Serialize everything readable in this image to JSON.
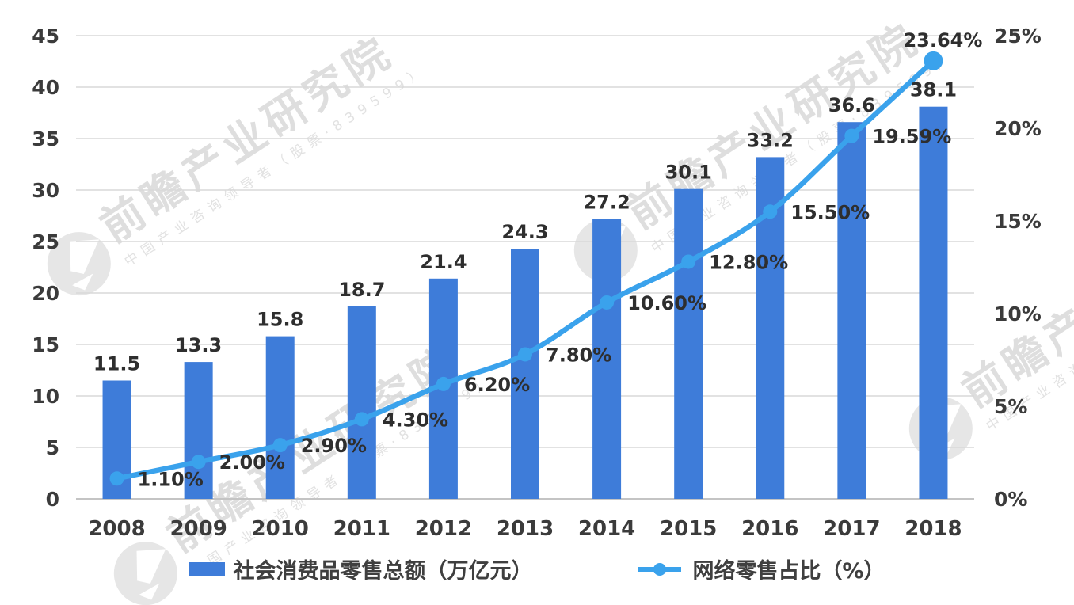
{
  "chart_data": {
    "type": "bar+line combo",
    "categories": [
      "2008",
      "2009",
      "2010",
      "2011",
      "2012",
      "2013",
      "2014",
      "2015",
      "2016",
      "2017",
      "2018"
    ],
    "series": [
      {
        "name": "社会消费品零售总额（万亿元）",
        "type": "bar",
        "axis": "left",
        "values": [
          11.5,
          13.3,
          15.8,
          18.7,
          21.4,
          24.3,
          27.2,
          30.1,
          33.2,
          36.6,
          38.1
        ],
        "labels": [
          "11.5",
          "13.3",
          "15.8",
          "18.7",
          "21.4",
          "24.3",
          "27.2",
          "30.1",
          "33.2",
          "36.6",
          "38.1"
        ]
      },
      {
        "name": "网络零售占比（%）",
        "type": "line",
        "axis": "right",
        "values": [
          1.1,
          2.0,
          2.9,
          4.3,
          6.2,
          7.8,
          10.6,
          12.8,
          15.5,
          19.59,
          23.64
        ],
        "labels": [
          "1.10%",
          "2.00%",
          "2.90%",
          "4.30%",
          "6.20%",
          "7.80%",
          "10.60%",
          "12.80%",
          "15.50%",
          "19.59%",
          "23.64%"
        ]
      }
    ],
    "left_axis": {
      "min": 0,
      "max": 45,
      "step": 5,
      "ticks": [
        "0",
        "5",
        "10",
        "15",
        "20",
        "25",
        "30",
        "35",
        "40",
        "45"
      ]
    },
    "right_axis": {
      "min": 0,
      "max": 25,
      "step": 5,
      "ticks": [
        "0%",
        "5%",
        "10%",
        "15%",
        "20%",
        "25%"
      ]
    },
    "grid": true,
    "legend_position": "bottom",
    "title": ""
  },
  "colors": {
    "bar": "#3E7CD9",
    "line": "#3AA2EC",
    "grid": "#D8D8D8",
    "axis_line": "#C4C4C4",
    "axis_text": "#3B3B3B",
    "label_text": "#2E2E2E"
  },
  "watermark": {
    "text": "前瞻产业研究院",
    "subtext": "中国产业咨询领导者（股票·839599）"
  }
}
